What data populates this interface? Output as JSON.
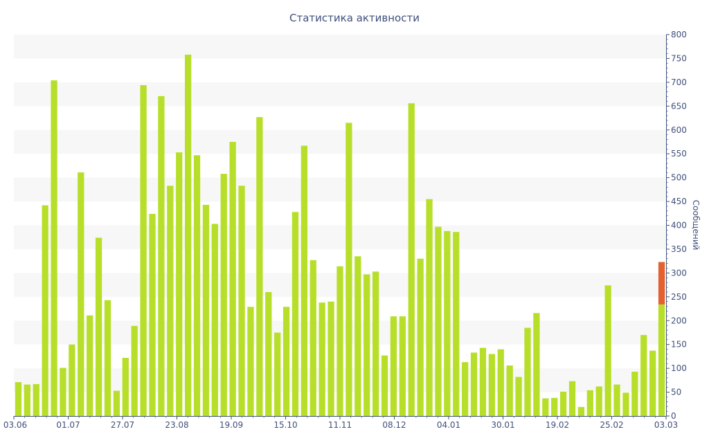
{
  "colors": {
    "bar": "#b7df2a",
    "bar_highlight": "#e4602e",
    "band": "#f7f7f7",
    "axis": "#3f4f7a"
  },
  "chart_data": {
    "type": "bar",
    "title": "Статистика активности",
    "xlabel": "",
    "ylabel": "Сообщений",
    "y_axis_side": "right",
    "ylim": [
      0,
      800
    ],
    "y_ticks": [
      0,
      50,
      100,
      150,
      200,
      250,
      300,
      350,
      400,
      450,
      500,
      550,
      600,
      650,
      700,
      750,
      800
    ],
    "x_tick_labels": [
      "03.06",
      "01.07",
      "27.07",
      "23.08",
      "19.09",
      "15.10",
      "11.11",
      "08.12",
      "04.01",
      "30.01",
      "19.02",
      "25.02",
      "03.03"
    ],
    "grid": "alternating horizontal bands",
    "legend": "none",
    "series": [
      {
        "values": [
          71,
          66,
          67,
          442,
          704,
          101,
          150,
          511,
          211,
          374,
          243,
          53,
          122,
          189,
          694,
          424,
          671,
          483,
          553,
          758,
          547,
          443,
          403,
          508,
          575,
          483,
          229,
          627,
          260,
          175,
          229,
          428,
          567,
          327,
          238,
          240,
          314,
          615,
          335,
          297,
          303,
          127,
          209,
          209,
          656,
          330,
          455,
          397,
          388,
          386,
          113,
          133,
          143,
          130,
          140,
          106,
          82,
          185,
          216,
          37,
          38,
          51,
          73,
          19,
          54,
          62,
          274,
          66,
          49,
          93,
          170,
          137,
          234
        ]
      },
      {
        "values": [
          0,
          0,
          0,
          0,
          0,
          0,
          0,
          0,
          0,
          0,
          0,
          0,
          0,
          0,
          0,
          0,
          0,
          0,
          0,
          0,
          0,
          0,
          0,
          0,
          0,
          0,
          0,
          0,
          0,
          0,
          0,
          0,
          0,
          0,
          0,
          0,
          0,
          0,
          0,
          0,
          0,
          0,
          0,
          0,
          0,
          0,
          0,
          0,
          0,
          0,
          0,
          0,
          0,
          0,
          0,
          0,
          0,
          0,
          0,
          0,
          0,
          0,
          0,
          0,
          0,
          0,
          0,
          0,
          0,
          0,
          0,
          0,
          89
        ]
      }
    ]
  }
}
